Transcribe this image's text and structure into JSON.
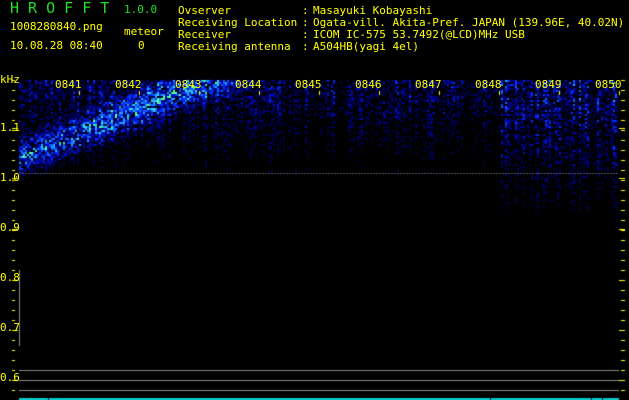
{
  "header": {
    "app_title": "H R O F F T",
    "version": "1.0.0",
    "filename": "1008280840.png",
    "datetime": "10.08.28 08:40",
    "meteor_label": "meteor",
    "meteor_count": "0"
  },
  "info": [
    {
      "label": "Ovserver",
      "value": "Masayuki Kobayashi"
    },
    {
      "label": "Receiving Location",
      "value": "Ogata-vill. Akita-Pref. JAPAN (139.96E, 40.02N)"
    },
    {
      "label": "Receiver",
      "value": "ICOM IC-575 53.7492(@LCD)MHz USB"
    },
    {
      "label": "Receiving antenna",
      "value": "A504HB(yagi 4el)"
    }
  ],
  "chart_data": {
    "type": "heatmap",
    "ylabel": "kHz",
    "y_ticks": [
      "1.1",
      "1.0",
      "0.9",
      "0.8",
      "0.7",
      "0.6"
    ],
    "ylim": [
      0.56,
      1.2
    ],
    "x_ticks": [
      "0841",
      "0842",
      "0843",
      "0844",
      "0845",
      "0846",
      "0847",
      "0848",
      "0849",
      "0850"
    ],
    "xlim": [
      "0840",
      "0850"
    ],
    "colors": {
      "low": "#000033",
      "mid": "#0033ff",
      "high": "#00ffcc",
      "labels": "#ffff00",
      "reference": "#888888",
      "status": "#00cccc"
    }
  }
}
